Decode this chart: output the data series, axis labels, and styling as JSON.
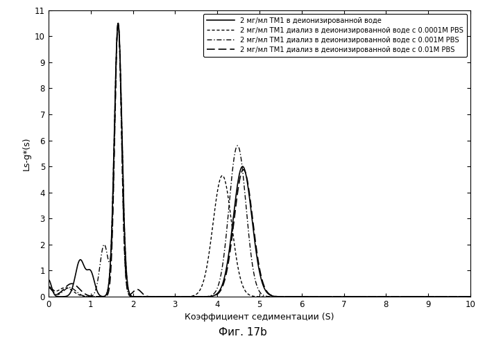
{
  "xlabel": "Коэффициент седиментации (S)",
  "ylabel": "Ls-g*(s)",
  "caption": "Фиг. 17b",
  "xlim": [
    0,
    10
  ],
  "ylim": [
    0,
    11
  ],
  "xticks": [
    0,
    1,
    2,
    3,
    4,
    5,
    6,
    7,
    8,
    9,
    10
  ],
  "yticks": [
    0,
    1,
    2,
    3,
    4,
    5,
    6,
    7,
    8,
    9,
    10,
    11
  ],
  "legend": [
    "2 мг/мл ТМ1 в деионизированной воде",
    "2 мг/мл ТМ1 диализ в деионизированной воде с 0.0001M PBS",
    "2 мг/мл ТМ1 диализ в деионизированной воде с 0.001M PBS",
    "2 мг/мл ТМ1 диализ в деионизированной воде с 0.01M PBS"
  ],
  "bg_color": "#f0f0f0"
}
